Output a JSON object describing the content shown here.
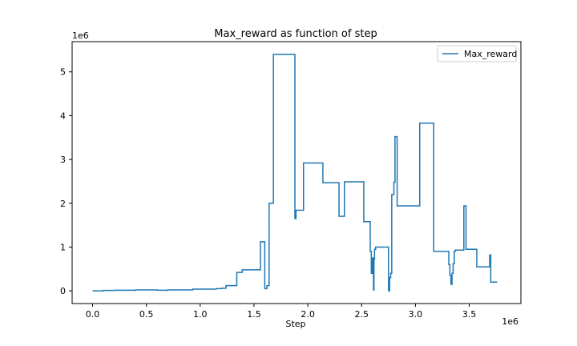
{
  "chart_data": {
    "type": "line",
    "title": "Max_reward as function of step",
    "xlabel": "Step",
    "ylabel": "",
    "x_offset_label": "1e6",
    "y_offset_label": "1e6",
    "xlim": [
      -0.19,
      3.98
    ],
    "ylim": [
      -0.29,
      5.69
    ],
    "x_ticks": [
      0.0,
      0.5,
      1.0,
      1.5,
      2.0,
      2.5,
      3.0,
      3.5
    ],
    "x_tick_labels": [
      "0.0",
      "0.5",
      "1.0",
      "1.5",
      "2.0",
      "2.5",
      "3.0",
      "3.5"
    ],
    "y_ticks": [
      0,
      1,
      2,
      3,
      4,
      5
    ],
    "y_tick_labels": [
      "0",
      "1",
      "2",
      "3",
      "4",
      "5"
    ],
    "grid": false,
    "legend_position": "top-right",
    "colors": {
      "series": "#1f77b4",
      "axis": "#000000",
      "background": "#ffffff"
    },
    "series": [
      {
        "name": "Max_reward",
        "x": [
          0.0,
          0.1,
          0.1,
          0.2,
          0.2,
          0.4,
          0.4,
          0.6,
          0.6,
          0.7,
          0.7,
          0.93,
          0.93,
          1.15,
          1.15,
          1.2,
          1.2,
          1.24,
          1.24,
          1.34,
          1.34,
          1.39,
          1.39,
          1.56,
          1.56,
          1.6,
          1.6,
          1.62,
          1.62,
          1.64,
          1.64,
          1.68,
          1.68,
          1.88,
          1.88,
          1.89,
          1.89,
          1.96,
          1.96,
          2.14,
          2.14,
          2.29,
          2.29,
          2.34,
          2.34,
          2.52,
          2.52,
          2.58,
          2.58,
          2.59,
          2.59,
          2.6,
          2.6,
          2.61,
          2.61,
          2.615,
          2.615,
          2.62,
          2.62,
          2.63,
          2.63,
          2.75,
          2.75,
          2.76,
          2.76,
          2.77,
          2.77,
          2.78,
          2.78,
          2.8,
          2.8,
          2.81,
          2.81,
          2.82,
          2.82,
          2.83,
          2.83,
          3.04,
          3.04,
          3.17,
          3.17,
          3.31,
          3.31,
          3.32,
          3.32,
          3.33,
          3.33,
          3.34,
          3.34,
          3.35,
          3.35,
          3.36,
          3.36,
          3.37,
          3.37,
          3.45,
          3.45,
          3.47,
          3.47,
          3.57,
          3.57,
          3.69,
          3.69,
          3.7,
          3.7,
          3.72,
          3.72,
          3.75,
          3.75,
          3.76,
          3.76
        ],
        "y": [
          0.0,
          0.0,
          0.01,
          0.01,
          0.015,
          0.015,
          0.02,
          0.02,
          0.015,
          0.015,
          0.02,
          0.02,
          0.04,
          0.04,
          0.05,
          0.05,
          0.06,
          0.06,
          0.12,
          0.12,
          0.42,
          0.42,
          0.48,
          0.48,
          1.12,
          1.12,
          0.05,
          0.05,
          0.12,
          0.12,
          2.0,
          2.0,
          5.4,
          5.4,
          1.65,
          1.65,
          1.84,
          1.84,
          2.92,
          2.92,
          2.47,
          2.47,
          1.7,
          1.7,
          2.49,
          2.49,
          1.58,
          1.58,
          0.9,
          0.9,
          0.4,
          0.4,
          0.75,
          0.75,
          0.02,
          0.02,
          0.72,
          0.72,
          0.95,
          0.95,
          1.0,
          1.0,
          0.0,
          0.0,
          0.3,
          0.3,
          0.4,
          0.4,
          2.2,
          2.2,
          2.48,
          2.48,
          3.52,
          3.52,
          3.52,
          3.52,
          1.94,
          1.94,
          3.83,
          3.83,
          0.9,
          0.9,
          0.6,
          0.6,
          0.35,
          0.35,
          0.15,
          0.15,
          0.4,
          0.4,
          0.62,
          0.62,
          0.9,
          0.9,
          0.93,
          0.93,
          1.94,
          1.94,
          0.95,
          0.95,
          0.55,
          0.55,
          0.82,
          0.82,
          0.2,
          0.2,
          0.2,
          0.2,
          0.2,
          0.2,
          0.2
        ]
      }
    ]
  }
}
